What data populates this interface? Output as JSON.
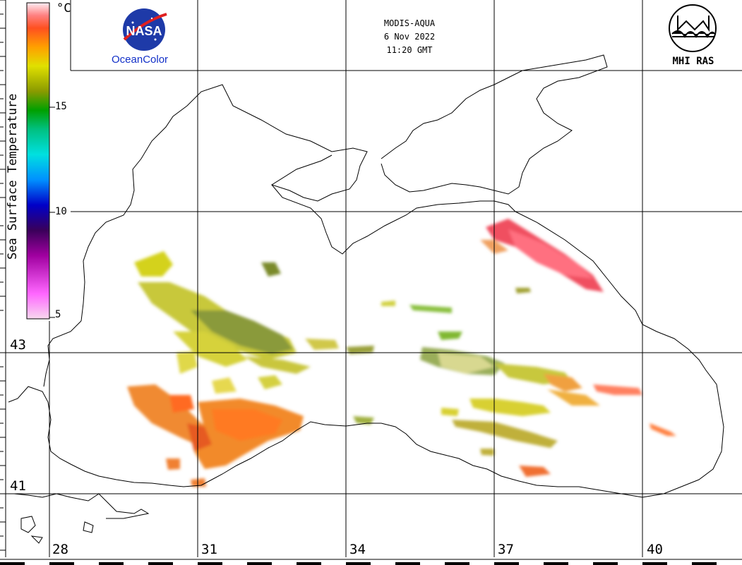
{
  "header": {
    "sensor": "MODIS-AQUA",
    "date": "6 Nov 2022",
    "time": "11:20 GMT"
  },
  "logos": {
    "nasa_text": "NASA",
    "oceancolor_text": "OceanColor",
    "mhi_text": "MHI RAS"
  },
  "legend": {
    "title": "Sea Surface Temperature",
    "unit": "°C",
    "ticks": [
      "15",
      "10",
      "5"
    ],
    "range": [
      5,
      20
    ],
    "colors": [
      "#f7d8ee",
      "#ff55ff",
      "#a000a0",
      "#3a005a",
      "#0000c8",
      "#0090ff",
      "#00e0e0",
      "#00c080",
      "#00a000",
      "#7aa000",
      "#e0e000",
      "#ffa000",
      "#ff5020",
      "#ff7070",
      "#ffe8ee"
    ]
  },
  "grid": {
    "longitudes": [
      "28",
      "31",
      "34",
      "37",
      "40"
    ],
    "latitudes": [
      "43",
      "41"
    ]
  }
}
